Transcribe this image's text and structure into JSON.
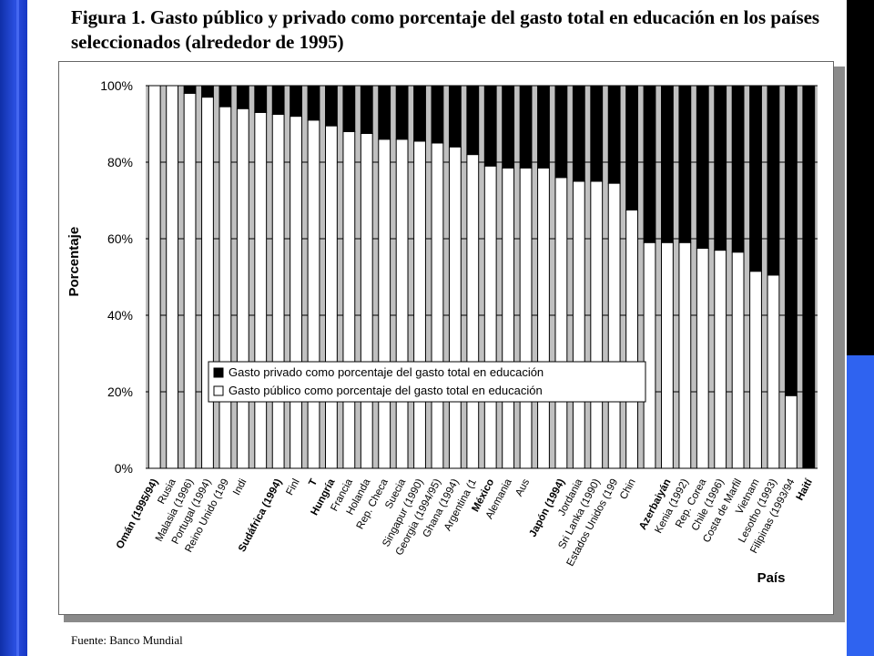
{
  "slide": {
    "title": "Figura 1.  Gasto público y privado como porcentaje del gasto total en educación en los países seleccionados (alrededor de 1995)",
    "source": "Fuente: Banco Mundial"
  },
  "chart_data": {
    "type": "bar",
    "stacked": true,
    "ylabel": "Porcentaje",
    "xlabel": "País",
    "ylim": [
      0,
      100
    ],
    "yticks": [
      "0%",
      "20%",
      "40%",
      "60%",
      "80%",
      "100%"
    ],
    "grid": true,
    "legend_position": "lower-left inside plot",
    "categories": [
      "Omán (1995/94)",
      "Rusia",
      "Malasia (1996)",
      "Portugal (1994)",
      "Reino Unido (199",
      "Indi",
      "",
      "Sudáfrica (1994)",
      "Finl",
      "T",
      "Hungría",
      "Francia",
      "Holanda",
      "Rep. Checa",
      "Suecia",
      "Singapur (1990)",
      "Georgia (1994/95)",
      "Ghana (1994)",
      "Argentina (1",
      "México",
      "Alemania",
      "Aus",
      "",
      "Japón (1994)",
      "Jordania",
      "Sri Lanka (1990)",
      "Estados Unidos (199",
      "Chin",
      "",
      "Azerbaiyán",
      "Kenia (1992)",
      "Rep. Corea",
      "Chile (1996)",
      "Costa de Marfil",
      "Vietnam",
      "Lesotho (1993)",
      "Filipinas (1993/94",
      "Haití"
    ],
    "bold_categories": [
      "Omán (1995/94)",
      "Sudáfrica (1994)",
      "T",
      "Hungría",
      "México",
      "Japón (1994)",
      "Azerbaiyán",
      "Haití"
    ],
    "series": [
      {
        "name": "Gasto público como porcentaje del gasto total en educación",
        "color": "#ffffff",
        "values": [
          100,
          100,
          98,
          97,
          94.5,
          94,
          93,
          92.5,
          92,
          91,
          89.5,
          88,
          87.5,
          86,
          86,
          85.5,
          85,
          84,
          82,
          79,
          78.5,
          78.5,
          78.5,
          76,
          75,
          75,
          74.5,
          67.5,
          59,
          59,
          59,
          57.5,
          57,
          56.5,
          51.5,
          50.5,
          19,
          0
        ]
      },
      {
        "name": "Gasto privado como porcentaje del gasto total en educación",
        "color": "#000000",
        "values": [
          0,
          0,
          2,
          3,
          5.5,
          6,
          7,
          7.5,
          8,
          9,
          10.5,
          12,
          12.5,
          14,
          14,
          14.5,
          15,
          16,
          18,
          21,
          21.5,
          21.5,
          21.5,
          24,
          25,
          25,
          25.5,
          32.5,
          41,
          41,
          41,
          42.5,
          43,
          43.5,
          48.5,
          49.5,
          81,
          100
        ]
      }
    ],
    "plot_background": "#c0c0c0"
  }
}
